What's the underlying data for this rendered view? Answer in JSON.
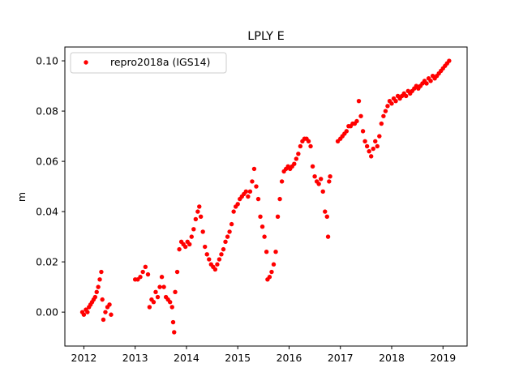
{
  "chart_data": {
    "type": "scatter",
    "title": "LPLY E",
    "xlabel": "",
    "ylabel": "m",
    "xlim": [
      2011.63,
      2019.47
    ],
    "ylim": [
      -0.0135,
      0.1055
    ],
    "x_ticks": [
      2012,
      2013,
      2014,
      2015,
      2016,
      2017,
      2018,
      2019
    ],
    "x_tick_labels": [
      "2012",
      "2013",
      "2014",
      "2015",
      "2016",
      "2017",
      "2018",
      "2019"
    ],
    "y_ticks": [
      0.0,
      0.02,
      0.04,
      0.06,
      0.08,
      0.1
    ],
    "y_tick_labels": [
      "0.00",
      "0.02",
      "0.04",
      "0.06",
      "0.08",
      "0.10"
    ],
    "grid": false,
    "legend_position": "top-left",
    "series": [
      {
        "name": "repro2018a (IGS14)",
        "color": "#ff0000",
        "marker": "circle",
        "points": [
          [
            2011.97,
            0.0
          ],
          [
            2012.0,
            -0.001
          ],
          [
            2012.04,
            0.001
          ],
          [
            2012.07,
            0.0
          ],
          [
            2012.1,
            0.002
          ],
          [
            2012.13,
            0.003
          ],
          [
            2012.16,
            0.004
          ],
          [
            2012.19,
            0.005
          ],
          [
            2012.22,
            0.006
          ],
          [
            2012.25,
            0.008
          ],
          [
            2012.28,
            0.01
          ],
          [
            2012.31,
            0.013
          ],
          [
            2012.34,
            0.016
          ],
          [
            2012.36,
            0.005
          ],
          [
            2012.38,
            -0.003
          ],
          [
            2012.42,
            0.0
          ],
          [
            2012.46,
            0.002
          ],
          [
            2012.5,
            0.003
          ],
          [
            2012.53,
            -0.001
          ],
          [
            2013.0,
            0.013
          ],
          [
            2013.05,
            0.013
          ],
          [
            2013.1,
            0.014
          ],
          [
            2013.15,
            0.016
          ],
          [
            2013.2,
            0.018
          ],
          [
            2013.25,
            0.015
          ],
          [
            2013.28,
            0.002
          ],
          [
            2013.32,
            0.005
          ],
          [
            2013.36,
            0.004
          ],
          [
            2013.4,
            0.008
          ],
          [
            2013.44,
            0.006
          ],
          [
            2013.48,
            0.01
          ],
          [
            2013.52,
            0.014
          ],
          [
            2013.56,
            0.01
          ],
          [
            2013.6,
            0.006
          ],
          [
            2013.64,
            0.005
          ],
          [
            2013.68,
            0.004
          ],
          [
            2013.72,
            0.002
          ],
          [
            2013.74,
            -0.004
          ],
          [
            2013.76,
            -0.008
          ],
          [
            2013.78,
            0.008
          ],
          [
            2013.82,
            0.016
          ],
          [
            2013.86,
            0.025
          ],
          [
            2013.9,
            0.028
          ],
          [
            2013.94,
            0.027
          ],
          [
            2013.98,
            0.026
          ],
          [
            2014.02,
            0.028
          ],
          [
            2014.06,
            0.027
          ],
          [
            2014.1,
            0.03
          ],
          [
            2014.14,
            0.033
          ],
          [
            2014.18,
            0.037
          ],
          [
            2014.22,
            0.04
          ],
          [
            2014.25,
            0.042
          ],
          [
            2014.28,
            0.038
          ],
          [
            2014.32,
            0.032
          ],
          [
            2014.36,
            0.026
          ],
          [
            2014.4,
            0.023
          ],
          [
            2014.44,
            0.021
          ],
          [
            2014.48,
            0.019
          ],
          [
            2014.52,
            0.018
          ],
          [
            2014.56,
            0.017
          ],
          [
            2014.6,
            0.019
          ],
          [
            2014.64,
            0.021
          ],
          [
            2014.68,
            0.023
          ],
          [
            2014.72,
            0.025
          ],
          [
            2014.76,
            0.028
          ],
          [
            2014.8,
            0.03
          ],
          [
            2014.84,
            0.032
          ],
          [
            2014.88,
            0.035
          ],
          [
            2014.92,
            0.04
          ],
          [
            2014.96,
            0.042
          ],
          [
            2015.0,
            0.043
          ],
          [
            2015.04,
            0.045
          ],
          [
            2015.08,
            0.046
          ],
          [
            2015.12,
            0.047
          ],
          [
            2015.16,
            0.048
          ],
          [
            2015.2,
            0.046
          ],
          [
            2015.24,
            0.048
          ],
          [
            2015.28,
            0.052
          ],
          [
            2015.32,
            0.057
          ],
          [
            2015.36,
            0.05
          ],
          [
            2015.4,
            0.045
          ],
          [
            2015.44,
            0.038
          ],
          [
            2015.48,
            0.034
          ],
          [
            2015.52,
            0.03
          ],
          [
            2015.56,
            0.024
          ],
          [
            2015.58,
            0.013
          ],
          [
            2015.62,
            0.014
          ],
          [
            2015.66,
            0.016
          ],
          [
            2015.7,
            0.019
          ],
          [
            2015.74,
            0.024
          ],
          [
            2015.78,
            0.038
          ],
          [
            2015.82,
            0.045
          ],
          [
            2015.86,
            0.052
          ],
          [
            2015.9,
            0.056
          ],
          [
            2015.94,
            0.057
          ],
          [
            2015.98,
            0.058
          ],
          [
            2016.02,
            0.057
          ],
          [
            2016.06,
            0.058
          ],
          [
            2016.1,
            0.059
          ],
          [
            2016.14,
            0.061
          ],
          [
            2016.18,
            0.063
          ],
          [
            2016.22,
            0.066
          ],
          [
            2016.26,
            0.068
          ],
          [
            2016.3,
            0.069
          ],
          [
            2016.34,
            0.069
          ],
          [
            2016.38,
            0.068
          ],
          [
            2016.42,
            0.066
          ],
          [
            2016.46,
            0.058
          ],
          [
            2016.5,
            0.054
          ],
          [
            2016.54,
            0.052
          ],
          [
            2016.58,
            0.051
          ],
          [
            2016.62,
            0.053
          ],
          [
            2016.66,
            0.048
          ],
          [
            2016.7,
            0.04
          ],
          [
            2016.74,
            0.038
          ],
          [
            2016.76,
            0.03
          ],
          [
            2016.78,
            0.052
          ],
          [
            2016.8,
            0.054
          ],
          [
            2016.95,
            0.068
          ],
          [
            2017.0,
            0.069
          ],
          [
            2017.04,
            0.07
          ],
          [
            2017.08,
            0.071
          ],
          [
            2017.12,
            0.072
          ],
          [
            2017.16,
            0.074
          ],
          [
            2017.2,
            0.074
          ],
          [
            2017.24,
            0.075
          ],
          [
            2017.28,
            0.075
          ],
          [
            2017.32,
            0.076
          ],
          [
            2017.36,
            0.084
          ],
          [
            2017.4,
            0.078
          ],
          [
            2017.44,
            0.072
          ],
          [
            2017.48,
            0.068
          ],
          [
            2017.52,
            0.066
          ],
          [
            2017.56,
            0.064
          ],
          [
            2017.6,
            0.062
          ],
          [
            2017.64,
            0.065
          ],
          [
            2017.68,
            0.068
          ],
          [
            2017.72,
            0.066
          ],
          [
            2017.76,
            0.07
          ],
          [
            2017.8,
            0.075
          ],
          [
            2017.84,
            0.078
          ],
          [
            2017.88,
            0.08
          ],
          [
            2017.92,
            0.082
          ],
          [
            2017.96,
            0.084
          ],
          [
            2018.0,
            0.083
          ],
          [
            2018.04,
            0.085
          ],
          [
            2018.08,
            0.084
          ],
          [
            2018.12,
            0.086
          ],
          [
            2018.16,
            0.085
          ],
          [
            2018.2,
            0.086
          ],
          [
            2018.24,
            0.087
          ],
          [
            2018.28,
            0.086
          ],
          [
            2018.32,
            0.088
          ],
          [
            2018.36,
            0.087
          ],
          [
            2018.4,
            0.088
          ],
          [
            2018.44,
            0.089
          ],
          [
            2018.48,
            0.09
          ],
          [
            2018.52,
            0.089
          ],
          [
            2018.56,
            0.09
          ],
          [
            2018.6,
            0.091
          ],
          [
            2018.64,
            0.092
          ],
          [
            2018.68,
            0.091
          ],
          [
            2018.72,
            0.093
          ],
          [
            2018.76,
            0.092
          ],
          [
            2018.8,
            0.094
          ],
          [
            2018.84,
            0.093
          ],
          [
            2018.88,
            0.094
          ],
          [
            2018.92,
            0.095
          ],
          [
            2018.96,
            0.096
          ],
          [
            2019.0,
            0.097
          ],
          [
            2019.04,
            0.098
          ],
          [
            2019.08,
            0.099
          ],
          [
            2019.12,
            0.1
          ]
        ]
      }
    ]
  }
}
